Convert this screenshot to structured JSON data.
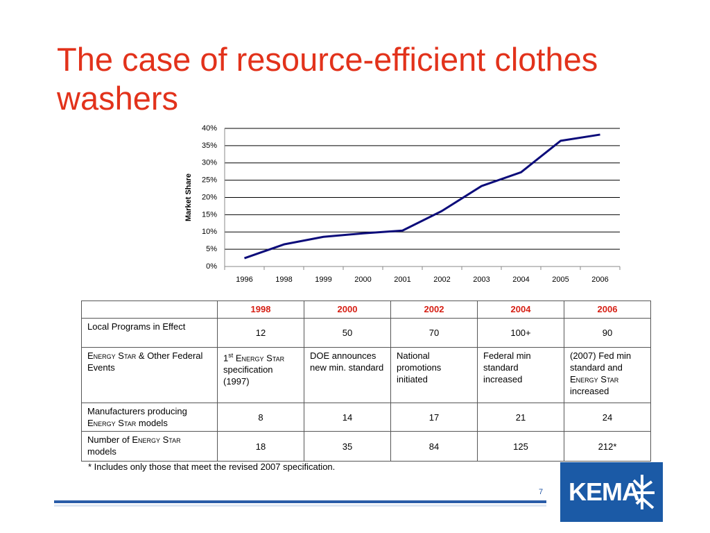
{
  "title": "The case of resource-efficient clothes washers",
  "chart_data": {
    "type": "line",
    "ylabel": "Market Share",
    "categories": [
      "1996",
      "1998",
      "1999",
      "2000",
      "2001",
      "2002",
      "2003",
      "2004",
      "2005",
      "2006"
    ],
    "series": [
      {
        "name": "Market Share",
        "color": "#0c0c7a",
        "values": [
          2.4,
          6.4,
          8.6,
          9.6,
          10.4,
          16.1,
          23.3,
          27.3,
          36.4,
          38.2
        ]
      }
    ],
    "ylim": [
      0,
      40
    ],
    "yticks": [
      {
        "value": 0,
        "label": "0%"
      },
      {
        "value": 5,
        "label": "5%"
      },
      {
        "value": 10,
        "label": "10%"
      },
      {
        "value": 15,
        "label": "15%"
      },
      {
        "value": 20,
        "label": "20%"
      },
      {
        "value": 25,
        "label": "25%"
      },
      {
        "value": 30,
        "label": "30%"
      },
      {
        "value": 35,
        "label": "35%"
      },
      {
        "value": 40,
        "label": "40%"
      }
    ],
    "grid": true
  },
  "table": {
    "columns": [
      "1998",
      "2000",
      "2002",
      "2004",
      "2006"
    ],
    "rows": [
      {
        "label": [
          {
            "text": "Local Programs in Effect"
          }
        ],
        "cells": [
          [
            {
              "text": "12"
            }
          ],
          [
            {
              "text": "50"
            }
          ],
          [
            {
              "text": "70"
            }
          ],
          [
            {
              "text": "100+"
            }
          ],
          [
            {
              "text": "90"
            }
          ]
        ],
        "align": "center"
      },
      {
        "label": [
          {
            "text": "Energy Star",
            "style": "sc"
          },
          {
            "text": " & Other Federal Events"
          }
        ],
        "cells": [
          [
            {
              "text": "1"
            },
            {
              "text": "st",
              "style": "sup"
            },
            {
              "text": " Energy Star",
              "style": "sc"
            },
            {
              "text": " specification (1997)"
            }
          ],
          [
            {
              "text": "DOE announces new min. standard"
            }
          ],
          [
            {
              "text": "National promotions initiated"
            }
          ],
          [
            {
              "text": "Federal min standard increased"
            }
          ],
          [
            {
              "text": "(2007) Fed min standard and "
            },
            {
              "text": "Energy Star",
              "style": "sc"
            },
            {
              "text": " increased"
            }
          ]
        ],
        "align": "left"
      },
      {
        "label": [
          {
            "text": "Manufacturers producing "
          },
          {
            "text": "Energy Star",
            "style": "sc"
          },
          {
            "text": " models"
          }
        ],
        "cells": [
          [
            {
              "text": "8"
            }
          ],
          [
            {
              "text": "14"
            }
          ],
          [
            {
              "text": "17"
            }
          ],
          [
            {
              "text": "21"
            }
          ],
          [
            {
              "text": "24"
            }
          ]
        ],
        "align": "center"
      },
      {
        "label": [
          {
            "text": "Number of "
          },
          {
            "text": "Energy Star",
            "style": "sc"
          },
          {
            "text": " models"
          }
        ],
        "cells": [
          [
            {
              "text": "18"
            }
          ],
          [
            {
              "text": "35"
            }
          ],
          [
            {
              "text": "84"
            }
          ],
          [
            {
              "text": "125"
            }
          ],
          [
            {
              "text": "212*"
            }
          ]
        ],
        "align": "center"
      }
    ]
  },
  "footnote": "* Includes only those that meet the revised 2007 specification.",
  "page_number": "7",
  "logo": "KEMA"
}
